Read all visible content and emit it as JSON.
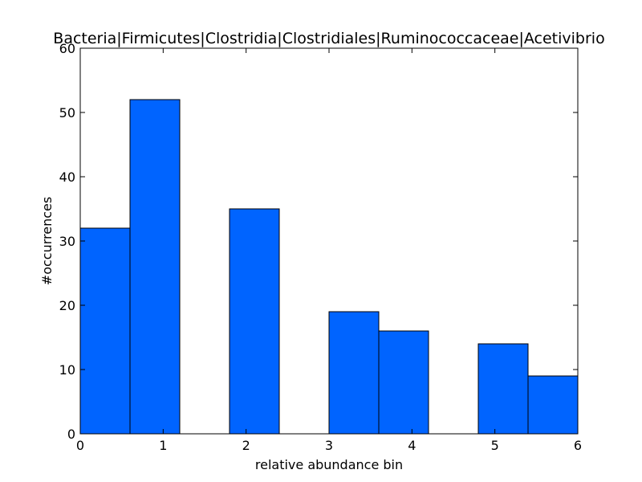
{
  "chart_data": {
    "type": "bar",
    "title": "Bacteria|Firmicutes|Clostridia|Clostridiales|Ruminococcaceae|Acetivibrio",
    "xlabel": "relative abundance bin",
    "ylabel": "#occurrences",
    "xlim": [
      0,
      6
    ],
    "ylim": [
      0,
      60
    ],
    "xticks": [
      0,
      1,
      2,
      3,
      4,
      5,
      6
    ],
    "yticks": [
      0,
      10,
      20,
      30,
      40,
      50,
      60
    ],
    "bin_edges": [
      0,
      0.6,
      1.2,
      1.8,
      2.4,
      3.0,
      3.6,
      4.2,
      4.8,
      5.4,
      6.0
    ],
    "values": [
      32,
      52,
      0,
      35,
      0,
      19,
      16,
      0,
      14,
      9
    ],
    "bar_color": "#0064ff",
    "edge_color": "#000000",
    "grid": false
  }
}
